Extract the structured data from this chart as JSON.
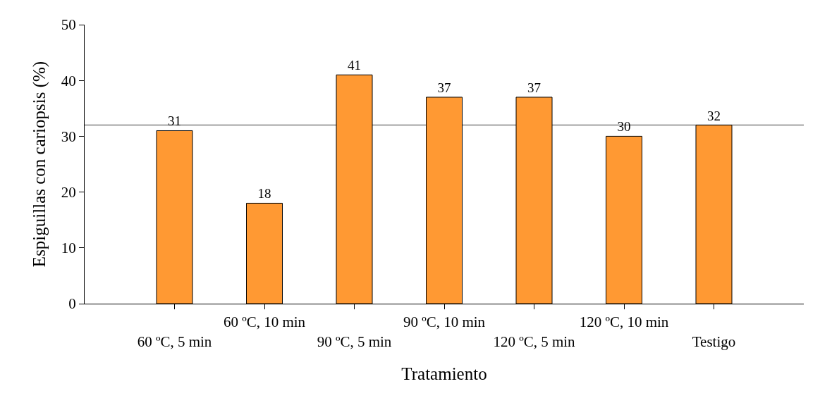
{
  "chart_data": {
    "type": "bar",
    "xlabel": "Tratamiento",
    "ylabel": "Espiguillas con cariopsis (%)",
    "categories": [
      "60 ºC, 5 min",
      "60 ºC, 10 min",
      "90 ºC, 5 min",
      "90 ºC, 10 min",
      "120 ºC, 5 min",
      "120 ºC, 10 min",
      "Testigo"
    ],
    "values": [
      31,
      18,
      41,
      37,
      37,
      30,
      32
    ],
    "color": "#ff9933",
    "ylim": [
      0,
      50
    ],
    "yticks": [
      0,
      10,
      20,
      30,
      40,
      50
    ],
    "grid": false,
    "data_labels": true,
    "ref_lines": [
      {
        "axis": "y",
        "value": 32,
        "color": "#808080"
      }
    ]
  }
}
